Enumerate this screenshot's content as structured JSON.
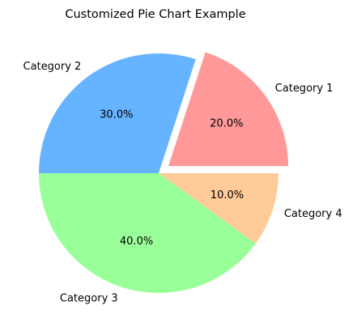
{
  "chart_data": {
    "type": "pie",
    "title": "Customized Pie Chart Example",
    "categories": [
      "Category 1",
      "Category 2",
      "Category 3",
      "Category 4"
    ],
    "values": [
      20,
      30,
      40,
      10
    ],
    "percent_labels": [
      "20.0%",
      "30.0%",
      "40.0%",
      "10.0%"
    ],
    "colors": [
      "#ff9999",
      "#66b3ff",
      "#99ff99",
      "#ffcc99"
    ],
    "exploded": [
      true,
      false,
      false,
      false
    ],
    "start_angle_deg": 0,
    "direction": "counterclockwise",
    "legend": "none"
  }
}
